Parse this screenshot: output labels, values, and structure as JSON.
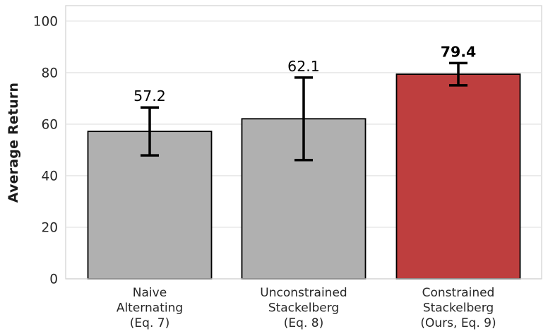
{
  "chart_data": {
    "type": "bar",
    "title": "",
    "xlabel": "",
    "ylabel": "Average Return",
    "categories": [
      "Naive\nAlternating\n(Eq. 7)",
      "Unconstrained\nStackelberg\n(Eq. 8)",
      "Constrained\nStackelberg\n(Ours, Eq. 9)"
    ],
    "values": [
      57.2,
      62.1,
      79.4
    ],
    "errors": [
      9.3,
      16.0,
      4.3
    ],
    "value_labels": [
      "57.2",
      "62.1",
      "79.4"
    ],
    "emphasized": [
      false,
      false,
      true
    ],
    "bar_colors": [
      "#b0b0b0",
      "#b0b0b0",
      "#be3e3e"
    ],
    "bar_edge_color": "#000000",
    "error_bar_color": "#000000",
    "yticks": [
      0,
      20,
      40,
      60,
      80,
      100
    ],
    "ytick_labels": [
      "0",
      "20",
      "40",
      "60",
      "80",
      "100"
    ],
    "ylim": [
      0,
      106
    ],
    "grid": true,
    "grid_color": "#e3e3e3",
    "spine_color": "#d4d4d4",
    "background": "#ffffff",
    "tick_label_color": "#262626",
    "value_label_color": "#000000",
    "legend": null
  }
}
